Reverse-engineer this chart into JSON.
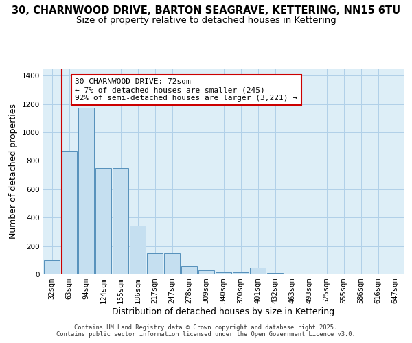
{
  "title_line1": "30, CHARNWOOD DRIVE, BARTON SEAGRAVE, KETTERING, NN15 6TU",
  "title_line2": "Size of property relative to detached houses in Kettering",
  "xlabel": "Distribution of detached houses by size in Kettering",
  "ylabel": "Number of detached properties",
  "background_color": "#ddeef7",
  "bar_color": "#c5dff0",
  "bar_edge_color": "#5590bb",
  "categories": [
    "32sqm",
    "63sqm",
    "94sqm",
    "124sqm",
    "155sqm",
    "186sqm",
    "217sqm",
    "247sqm",
    "278sqm",
    "309sqm",
    "340sqm",
    "370sqm",
    "401sqm",
    "432sqm",
    "463sqm",
    "493sqm",
    "525sqm",
    "555sqm",
    "586sqm",
    "616sqm",
    "647sqm"
  ],
  "values": [
    100,
    870,
    1175,
    748,
    748,
    342,
    150,
    148,
    58,
    28,
    14,
    14,
    50,
    9,
    4,
    4,
    2,
    2,
    2,
    1,
    1
  ],
  "ylim": [
    0,
    1450
  ],
  "yticks": [
    0,
    200,
    400,
    600,
    800,
    1000,
    1200,
    1400
  ],
  "vline_x": 0.575,
  "vline_color": "#cc0000",
  "annotation_text": "30 CHARNWOOD DRIVE: 72sqm\n← 7% of detached houses are smaller (245)\n92% of semi-detached houses are larger (3,221) →",
  "annotation_box_color": "#ffffff",
  "annotation_box_edge": "#cc0000",
  "footer_line1": "Contains HM Land Registry data © Crown copyright and database right 2025.",
  "footer_line2": "Contains public sector information licensed under the Open Government Licence v3.0.",
  "grid_color": "#b0d0e8",
  "title_fontsize": 10.5,
  "subtitle_fontsize": 9.5,
  "axis_label_fontsize": 9,
  "tick_fontsize": 7.5,
  "annotation_fontsize": 8
}
